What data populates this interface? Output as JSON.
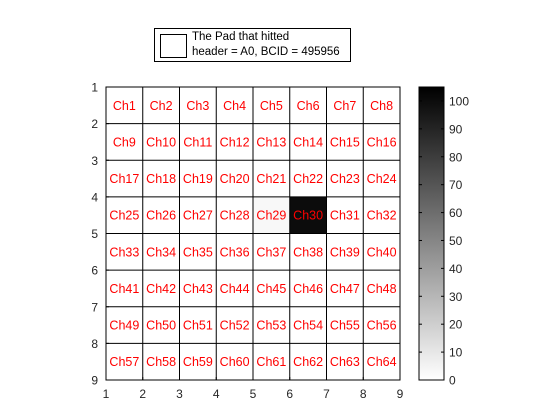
{
  "legend": {
    "line1": "The Pad that hitted",
    "line2": "header = A0, BCID = 495956"
  },
  "chart_data": {
    "type": "heatmap",
    "title": "",
    "xlabel": "",
    "ylabel": "",
    "xlim": [
      1,
      9
    ],
    "ylim": [
      1,
      9
    ],
    "y_direction": "reversed",
    "x_ticks": [
      "1",
      "2",
      "3",
      "4",
      "5",
      "6",
      "7",
      "8",
      "9"
    ],
    "y_ticks": [
      "1",
      "2",
      "3",
      "4",
      "5",
      "6",
      "7",
      "8",
      "9"
    ],
    "rows": 8,
    "cols": 8,
    "cell_labels": [
      [
        "Ch1",
        "Ch2",
        "Ch3",
        "Ch4",
        "Ch5",
        "Ch6",
        "Ch7",
        "Ch8"
      ],
      [
        "Ch9",
        "Ch10",
        "Ch11",
        "Ch12",
        "Ch13",
        "Ch14",
        "Ch15",
        "Ch16"
      ],
      [
        "Ch17",
        "Ch18",
        "Ch19",
        "Ch20",
        "Ch21",
        "Ch22",
        "Ch23",
        "Ch24"
      ],
      [
        "Ch25",
        "Ch26",
        "Ch27",
        "Ch28",
        "Ch29",
        "Ch30",
        "Ch31",
        "Ch32"
      ],
      [
        "Ch33",
        "Ch34",
        "Ch35",
        "Ch36",
        "Ch37",
        "Ch38",
        "Ch39",
        "Ch40"
      ],
      [
        "Ch41",
        "Ch42",
        "Ch43",
        "Ch44",
        "Ch45",
        "Ch46",
        "Ch47",
        "Ch48"
      ],
      [
        "Ch49",
        "Ch50",
        "Ch51",
        "Ch52",
        "Ch53",
        "Ch54",
        "Ch55",
        "Ch56"
      ],
      [
        "Ch57",
        "Ch58",
        "Ch59",
        "Ch60",
        "Ch61",
        "Ch62",
        "Ch63",
        "Ch64"
      ]
    ],
    "values": [
      [
        0,
        0,
        0,
        0,
        0,
        0,
        0,
        0
      ],
      [
        0,
        0,
        0,
        0,
        0,
        0,
        0,
        0
      ],
      [
        0,
        0,
        0,
        0,
        0,
        0,
        0,
        0
      ],
      [
        0,
        0,
        0,
        0,
        3,
        100,
        0,
        0
      ],
      [
        0,
        0,
        0,
        0,
        0,
        0,
        0,
        0
      ],
      [
        0,
        0,
        0,
        0,
        0,
        0,
        0,
        0
      ],
      [
        0,
        0,
        0,
        0,
        0,
        0,
        0,
        0
      ],
      [
        0,
        0,
        0,
        0,
        0,
        0,
        0,
        0
      ]
    ],
    "colorbar": {
      "colormap": "gray-reversed",
      "range": [
        0,
        105
      ],
      "ticks": [
        "0",
        "10",
        "20",
        "30",
        "40",
        "50",
        "60",
        "70",
        "80",
        "90",
        "100"
      ]
    },
    "colors": {
      "label": "#ff0000",
      "label_on_dark": "#ff0000",
      "grid": "#000000",
      "axis": "#000000"
    },
    "grid": true
  }
}
